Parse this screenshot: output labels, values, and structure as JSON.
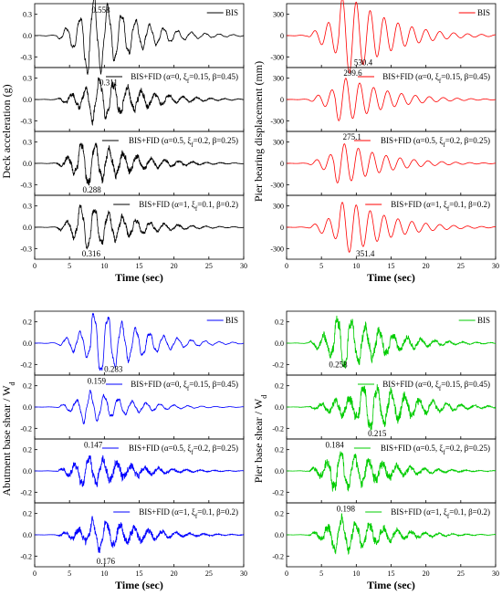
{
  "figure": {
    "x_axis_label": "Time (sec)",
    "x_ticks": [
      0,
      5,
      10,
      15,
      20,
      25,
      30
    ],
    "colors": {
      "black": "#000000",
      "red": "#ff0000",
      "blue": "#0000ff",
      "green": "#00cc00"
    }
  },
  "chart_data": [
    {
      "type": "line",
      "name": "deck",
      "ylabel": "Deck acceleration (g)",
      "xlabel": "Time (sec)",
      "xlim": [
        0,
        30
      ],
      "ylim": [
        -0.45,
        0.45
      ],
      "y_ticks": [
        -0.3,
        0.0,
        0.3
      ],
      "y_tick_labels": [
        "-0.3",
        "0.0",
        "0.3"
      ],
      "color": "#000000",
      "panels": [
        {
          "legend": "BIS",
          "peak_label": "0.558",
          "amp": 0.558,
          "peak_t": 8.5,
          "peak_sign": 1,
          "noise": 0.02,
          "label_t": 9.5,
          "label_v": 0.36
        },
        {
          "legend": "BIS+FID (α=0, ξf=0.15, β=0.45)",
          "peak_label": "0.311",
          "amp": 0.311,
          "peak_t": 9.3,
          "peak_sign": 1,
          "noise": 0.05,
          "label_t": 10.6,
          "label_v": 0.24
        },
        {
          "legend": "BIS+FID (α=0.5, ξf=0.2, β=0.25)",
          "peak_label": "0.288",
          "amp": 0.288,
          "peak_t": 7.7,
          "peak_sign": -1,
          "noise": 0.05,
          "label_t": 8.2,
          "label_v": -0.37
        },
        {
          "legend": "BIS+FID (α=1, ξf=0.1, β=0.2)",
          "peak_label": "0.316",
          "amp": 0.316,
          "peak_t": 7.6,
          "peak_sign": -1,
          "noise": 0.04,
          "label_t": 8.1,
          "label_v": -0.37
        }
      ]
    },
    {
      "type": "line",
      "name": "pier-bearing",
      "ylabel": "Pier bearing displacement (mm)",
      "xlabel": "Time (sec)",
      "xlim": [
        0,
        30
      ],
      "ylim": [
        -450,
        450
      ],
      "y_ticks": [
        -300,
        0,
        300
      ],
      "y_tick_labels": [
        "-300",
        "0",
        "300"
      ],
      "color": "#ff0000",
      "panels": [
        {
          "legend": "BIS",
          "peak_label": "530.4",
          "amp": 530.4,
          "peak_t": 9.0,
          "peak_sign": -1,
          "noise": 0.0,
          "label_t": 11.0,
          "label_v": -380
        },
        {
          "legend": "BIS+FID (α=0, ξf=0.15, β=0.45)",
          "peak_label": "299.6",
          "amp": 299.6,
          "peak_t": 8.5,
          "peak_sign": 1,
          "noise": 0.0,
          "label_t": 9.5,
          "label_v": 370
        },
        {
          "legend": "BIS+FID (α=0.5, ξf=0.2, β=0.25)",
          "peak_label": "275.1",
          "amp": 275.1,
          "peak_t": 8.3,
          "peak_sign": 1,
          "noise": 0.01,
          "label_t": 9.4,
          "label_v": 370
        },
        {
          "legend": "BIS+FID (α=1, ξf=0.1, β=0.2)",
          "peak_label": "351.4",
          "amp": 351.4,
          "peak_t": 9.0,
          "peak_sign": -1,
          "noise": 0.0,
          "label_t": 11.3,
          "label_v": -370
        }
      ]
    },
    {
      "type": "line",
      "name": "abutment",
      "ylabel": "Abutment base shear / W_d",
      "xlabel": "Time (sec)",
      "xlim": [
        0,
        30
      ],
      "ylim": [
        -0.3,
        0.3
      ],
      "y_ticks": [
        -0.2,
        0.0,
        0.2
      ],
      "y_tick_labels": [
        "-0.2",
        "0.0",
        "0.2"
      ],
      "color": "#0000ff",
      "panels": [
        {
          "legend": "BIS",
          "peak_label": "0.283",
          "amp": 0.283,
          "peak_t": 9.5,
          "peak_sign": -1,
          "noise": 0.01,
          "label_t": 11.3,
          "label_v": -0.245
        },
        {
          "legend": "BIS+FID (α=0, ξf=0.15, β=0.45)",
          "peak_label": "0.159",
          "amp": 0.159,
          "peak_t": 8.0,
          "peak_sign": 1,
          "noise": 0.01,
          "label_t": 8.9,
          "label_v": 0.245
        },
        {
          "legend": "BIS+FID (α=0.5, ξf=0.2, β=0.25)",
          "peak_label": "0.147",
          "amp": 0.147,
          "peak_t": 7.8,
          "peak_sign": 1,
          "noise": 0.04,
          "label_t": 8.4,
          "label_v": 0.245
        },
        {
          "legend": "BIS+FID (α=1, ξf=0.1, β=0.2)",
          "peak_label": "0.176",
          "amp": 0.176,
          "peak_t": 9.3,
          "peak_sign": -1,
          "noise": 0.05,
          "label_t": 10.2,
          "label_v": -0.25
        }
      ]
    },
    {
      "type": "line",
      "name": "pier-shear",
      "ylabel": "Pier base shear / W_d",
      "xlabel": "Time (sec)",
      "xlim": [
        0,
        30
      ],
      "ylim": [
        -0.3,
        0.3
      ],
      "y_ticks": [
        -0.2,
        0.0,
        0.2
      ],
      "y_tick_labels": [
        "-0.2",
        "0.0",
        "0.2"
      ],
      "color": "#00cc00",
      "panels": [
        {
          "legend": "BIS",
          "peak_label": "0.258",
          "amp": 0.258,
          "peak_t": 8.3,
          "peak_sign": -1,
          "noise": 0.05,
          "label_t": 7.4,
          "label_v": -0.2
        },
        {
          "legend": "BIS+FID (α=0, ξf=0.15, β=0.45)",
          "peak_label": "0.215",
          "amp": 0.215,
          "peak_t": 12.0,
          "peak_sign": -1,
          "noise": 0.05,
          "label_t": 13.0,
          "label_v": -0.25
        },
        {
          "legend": "BIS+FID (α=0.5, ξf=0.2, β=0.25)",
          "peak_label": "0.184",
          "amp": 0.184,
          "peak_t": 7.8,
          "peak_sign": 1,
          "noise": 0.05,
          "label_t": 6.9,
          "label_v": 0.245
        },
        {
          "legend": "BIS+FID (α=1, ξf=0.1, β=0.2)",
          "peak_label": "0.198",
          "amp": 0.198,
          "peak_t": 7.9,
          "peak_sign": 1,
          "noise": 0.05,
          "label_t": 8.5,
          "label_v": 0.245
        }
      ]
    }
  ]
}
